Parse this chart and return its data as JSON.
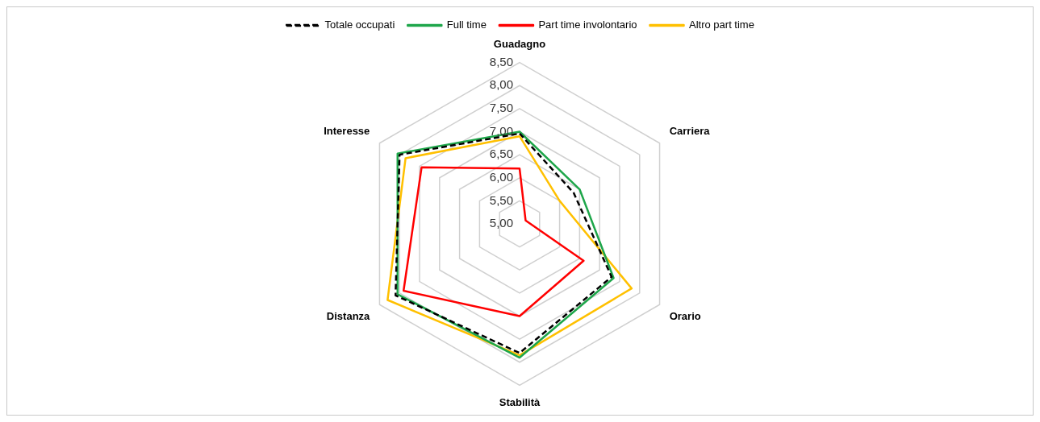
{
  "chart_data": {
    "type": "radar",
    "categories": [
      "Guadagno",
      "Carriera",
      "Orario",
      "Stabilità",
      "Distanza",
      "Interesse"
    ],
    "series": [
      {
        "name": "Totale occupati",
        "color": "#000000",
        "line_style": "dashed",
        "values": [
          6.96,
          6.35,
          7.3,
          7.8,
          8.1,
          8.0
        ]
      },
      {
        "name": "Full time",
        "color": "#1ea64a",
        "line_style": "solid",
        "values": [
          7.0,
          6.5,
          7.35,
          7.9,
          8.05,
          8.05
        ]
      },
      {
        "name": "Part time involontario",
        "color": "#ff0000",
        "line_style": "solid",
        "values": [
          6.2,
          5.15,
          6.6,
          7.0,
          7.9,
          7.45
        ]
      },
      {
        "name": "Altro part time",
        "color": "#ffc000",
        "line_style": "solid",
        "values": [
          6.9,
          6.0,
          7.8,
          7.85,
          8.3,
          7.85
        ]
      }
    ],
    "ylim": [
      5,
      8.5
    ],
    "yticks": [
      {
        "value": 5,
        "label": "5,00"
      },
      {
        "value": 5.5,
        "label": "5,50"
      },
      {
        "value": 6,
        "label": "6,00"
      },
      {
        "value": 6.5,
        "label": "6,50"
      },
      {
        "value": 7,
        "label": "7,00"
      },
      {
        "value": 7.5,
        "label": "7,50"
      },
      {
        "value": 8,
        "label": "8,00"
      },
      {
        "value": 8.5,
        "label": "8,50"
      }
    ],
    "grid": true,
    "legend": "top",
    "marker": "none"
  }
}
